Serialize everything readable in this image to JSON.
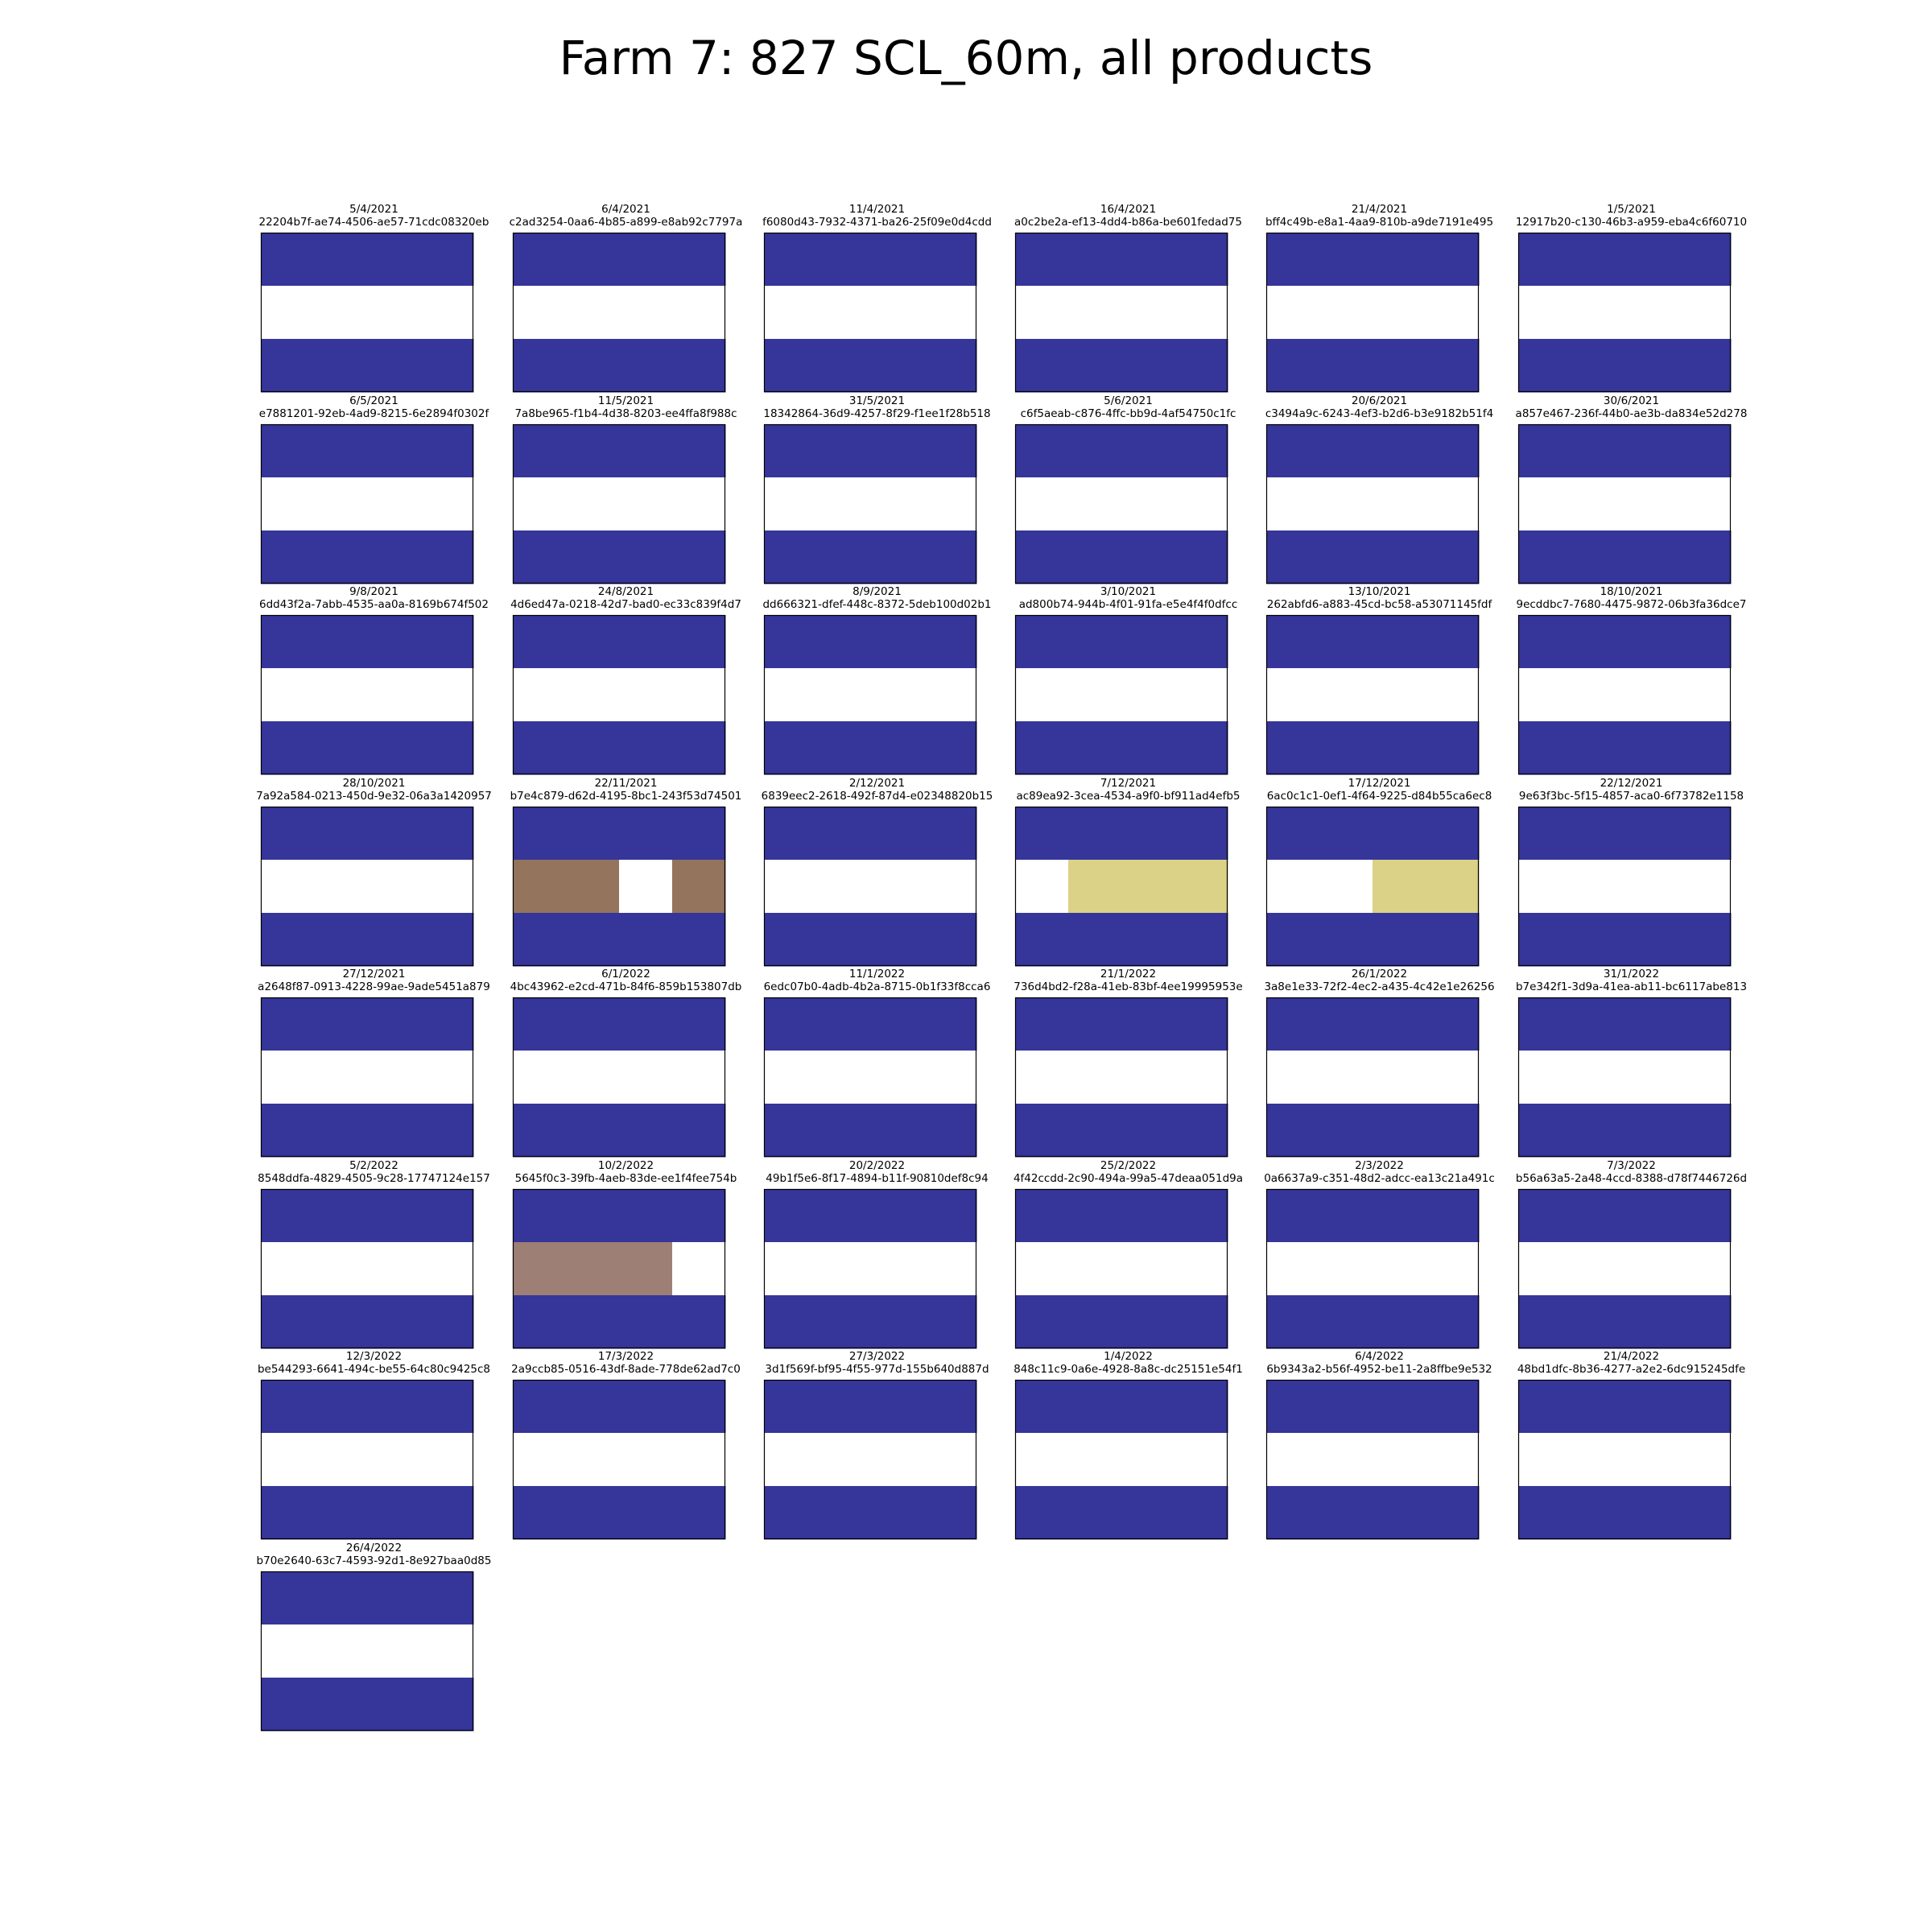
{
  "page": {
    "title": "Farm 7: 827 SCL_60m, all products"
  },
  "chart_data": {
    "type": "heatmap",
    "title": "Farm 7: 827 SCL_60m, all products",
    "grid": false,
    "legend": "none",
    "colors": {
      "navy": "#35359a",
      "white": "#ffffff",
      "brown": "#94745c",
      "khaki": "#dbd187",
      "taupe": "#9d7f75"
    },
    "panels": [
      {
        "date": "5/4/2021",
        "id": "22204b7f-ae74-4506-ae57-71cdc08320eb",
        "middle_row": [
          "white",
          "white",
          "white",
          "white"
        ]
      },
      {
        "date": "6/4/2021",
        "id": "c2ad3254-0aa6-4b85-a899-e8ab92c7797a",
        "middle_row": [
          "white",
          "white",
          "white",
          "white"
        ]
      },
      {
        "date": "11/4/2021",
        "id": "f6080d43-7932-4371-ba26-25f09e0d4cdd",
        "middle_row": [
          "white",
          "white",
          "white",
          "white"
        ]
      },
      {
        "date": "16/4/2021",
        "id": "a0c2be2a-ef13-4dd4-b86a-be601fedad75",
        "middle_row": [
          "white",
          "white",
          "white",
          "white"
        ]
      },
      {
        "date": "21/4/2021",
        "id": "bff4c49b-e8a1-4aa9-810b-a9de7191e495",
        "middle_row": [
          "white",
          "white",
          "white",
          "white"
        ]
      },
      {
        "date": "1/5/2021",
        "id": "12917b20-c130-46b3-a959-eba4c6f60710",
        "middle_row": [
          "white",
          "white",
          "white",
          "white"
        ]
      },
      {
        "date": "6/5/2021",
        "id": "e7881201-92eb-4ad9-8215-6e2894f0302f",
        "middle_row": [
          "white",
          "white",
          "white",
          "white"
        ]
      },
      {
        "date": "11/5/2021",
        "id": "7a8be965-f1b4-4d38-8203-ee4ffa8f988c",
        "middle_row": [
          "white",
          "white",
          "white",
          "white"
        ]
      },
      {
        "date": "31/5/2021",
        "id": "18342864-36d9-4257-8f29-f1ee1f28b518",
        "middle_row": [
          "white",
          "white",
          "white",
          "white"
        ]
      },
      {
        "date": "5/6/2021",
        "id": "c6f5aeab-c876-4ffc-bb9d-4af54750c1fc",
        "middle_row": [
          "white",
          "white",
          "white",
          "white"
        ]
      },
      {
        "date": "20/6/2021",
        "id": "c3494a9c-6243-4ef3-b2d6-b3e9182b51f4",
        "middle_row": [
          "white",
          "white",
          "white",
          "white"
        ]
      },
      {
        "date": "30/6/2021",
        "id": "a857e467-236f-44b0-ae3b-da834e52d278",
        "middle_row": [
          "white",
          "white",
          "white",
          "white"
        ]
      },
      {
        "date": "9/8/2021",
        "id": "6dd43f2a-7abb-4535-aa0a-8169b674f502",
        "middle_row": [
          "white",
          "white",
          "white",
          "white"
        ]
      },
      {
        "date": "24/8/2021",
        "id": "4d6ed47a-0218-42d7-bad0-ec33c839f4d7",
        "middle_row": [
          "white",
          "white",
          "white",
          "white"
        ]
      },
      {
        "date": "8/9/2021",
        "id": "dd666321-dfef-448c-8372-5deb100d02b1",
        "middle_row": [
          "white",
          "white",
          "white",
          "white"
        ]
      },
      {
        "date": "3/10/2021",
        "id": "ad800b74-944b-4f01-91fa-e5e4f4f0dfcc",
        "middle_row": [
          "white",
          "white",
          "white",
          "white"
        ]
      },
      {
        "date": "13/10/2021",
        "id": "262abfd6-a883-45cd-bc58-a53071145fdf",
        "middle_row": [
          "white",
          "white",
          "white",
          "white"
        ]
      },
      {
        "date": "18/10/2021",
        "id": "9ecddbc7-7680-4475-9872-06b3fa36dce7",
        "middle_row": [
          "white",
          "white",
          "white",
          "white"
        ]
      },
      {
        "date": "28/10/2021",
        "id": "7a92a584-0213-450d-9e32-06a3a1420957",
        "middle_row": [
          "white",
          "white",
          "white",
          "white"
        ]
      },
      {
        "date": "22/11/2021",
        "id": "b7e4c879-d62d-4195-8bc1-243f53d74501",
        "middle_row": [
          "brown",
          "brown",
          "white",
          "brown"
        ]
      },
      {
        "date": "2/12/2021",
        "id": "6839eec2-2618-492f-87d4-e02348820b15",
        "middle_row": [
          "white",
          "white",
          "white",
          "white"
        ]
      },
      {
        "date": "7/12/2021",
        "id": "ac89ea92-3cea-4534-a9f0-bf911ad4efb5",
        "middle_row": [
          "white",
          "khaki",
          "khaki",
          "khaki"
        ]
      },
      {
        "date": "17/12/2021",
        "id": "6ac0c1c1-0ef1-4f64-9225-d84b55ca6ec8",
        "middle_row": [
          "white",
          "white",
          "khaki",
          "khaki"
        ]
      },
      {
        "date": "22/12/2021",
        "id": "9e63f3bc-5f15-4857-aca0-6f73782e1158",
        "middle_row": [
          "white",
          "white",
          "white",
          "white"
        ]
      },
      {
        "date": "27/12/2021",
        "id": "a2648f87-0913-4228-99ae-9ade5451a879",
        "middle_row": [
          "white",
          "white",
          "white",
          "white"
        ]
      },
      {
        "date": "6/1/2022",
        "id": "4bc43962-e2cd-471b-84f6-859b153807db",
        "middle_row": [
          "white",
          "white",
          "white",
          "white"
        ]
      },
      {
        "date": "11/1/2022",
        "id": "6edc07b0-4adb-4b2a-8715-0b1f33f8cca6",
        "middle_row": [
          "white",
          "white",
          "white",
          "white"
        ]
      },
      {
        "date": "21/1/2022",
        "id": "736d4bd2-f28a-41eb-83bf-4ee19995953e",
        "middle_row": [
          "white",
          "white",
          "white",
          "white"
        ]
      },
      {
        "date": "26/1/2022",
        "id": "3a8e1e33-72f2-4ec2-a435-4c42e1e26256",
        "middle_row": [
          "white",
          "white",
          "white",
          "white"
        ]
      },
      {
        "date": "31/1/2022",
        "id": "b7e342f1-3d9a-41ea-ab11-bc6117abe813",
        "middle_row": [
          "white",
          "white",
          "white",
          "white"
        ]
      },
      {
        "date": "5/2/2022",
        "id": "8548ddfa-4829-4505-9c28-17747124e157",
        "middle_row": [
          "white",
          "white",
          "white",
          "white"
        ]
      },
      {
        "date": "10/2/2022",
        "id": "5645f0c3-39fb-4aeb-83de-ee1f4fee754b",
        "middle_row": [
          "taupe",
          "taupe",
          "taupe",
          "white"
        ]
      },
      {
        "date": "20/2/2022",
        "id": "49b1f5e6-8f17-4894-b11f-90810def8c94",
        "middle_row": [
          "white",
          "white",
          "white",
          "white"
        ]
      },
      {
        "date": "25/2/2022",
        "id": "4f42ccdd-2c90-494a-99a5-47deaa051d9a",
        "middle_row": [
          "white",
          "white",
          "white",
          "white"
        ]
      },
      {
        "date": "2/3/2022",
        "id": "0a6637a9-c351-48d2-adcc-ea13c21a491c",
        "middle_row": [
          "white",
          "white",
          "white",
          "white"
        ]
      },
      {
        "date": "7/3/2022",
        "id": "b56a63a5-2a48-4ccd-8388-d78f7446726d",
        "middle_row": [
          "white",
          "white",
          "white",
          "white"
        ]
      },
      {
        "date": "12/3/2022",
        "id": "be544293-6641-494c-be55-64c80c9425c8",
        "middle_row": [
          "white",
          "white",
          "white",
          "white"
        ]
      },
      {
        "date": "17/3/2022",
        "id": "2a9ccb85-0516-43df-8ade-778de62ad7c0",
        "middle_row": [
          "white",
          "white",
          "white",
          "white"
        ]
      },
      {
        "date": "27/3/2022",
        "id": "3d1f569f-bf95-4f55-977d-155b640d887d",
        "middle_row": [
          "white",
          "white",
          "white",
          "white"
        ]
      },
      {
        "date": "1/4/2022",
        "id": "848c11c9-0a6e-4928-8a8c-dc25151e54f1",
        "middle_row": [
          "white",
          "white",
          "white",
          "white"
        ]
      },
      {
        "date": "6/4/2022",
        "id": "6b9343a2-b56f-4952-be11-2a8ffbe9e532",
        "middle_row": [
          "white",
          "white",
          "white",
          "white"
        ]
      },
      {
        "date": "21/4/2022",
        "id": "48bd1dfc-8b36-4277-a2e2-6dc915245dfe",
        "middle_row": [
          "white",
          "white",
          "white",
          "white"
        ]
      },
      {
        "date": "26/4/2022",
        "id": "b70e2640-63c7-4593-92d1-8e927baa0d85",
        "middle_row": [
          "white",
          "white",
          "white",
          "white"
        ]
      }
    ]
  }
}
